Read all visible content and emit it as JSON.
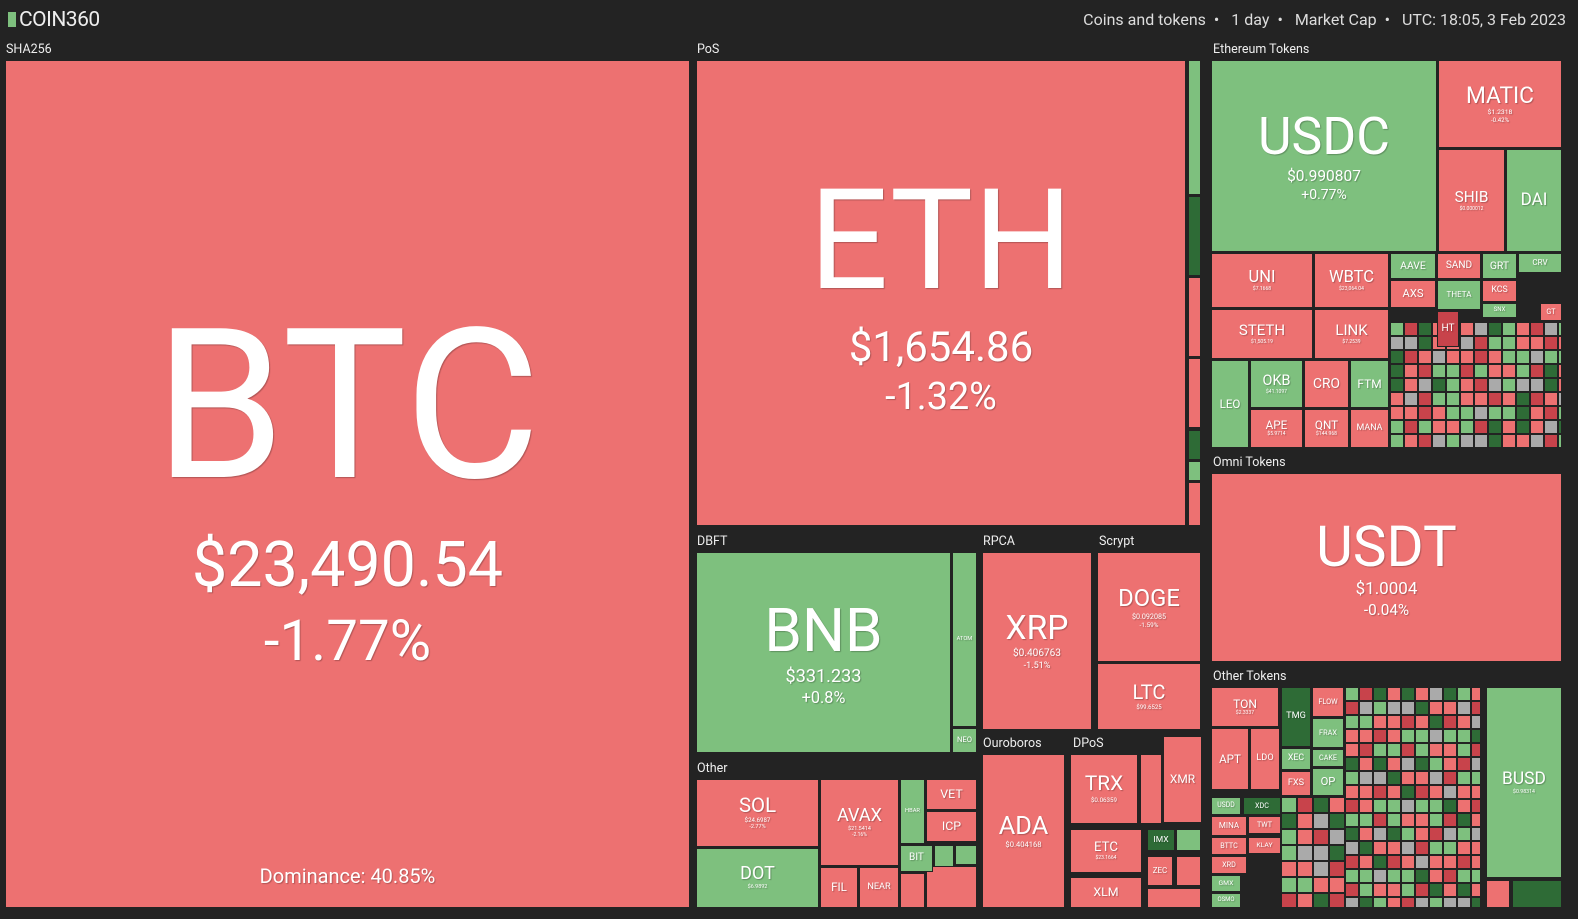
{
  "header": {
    "logo": "COIN360",
    "filters": [
      "Coins and tokens",
      "1 day",
      "Market Cap",
      "UTC: 18:05, 3 Feb 2023"
    ]
  },
  "groups": [
    {
      "label": "SHA256",
      "tiles": [
        {
          "symbol": "BTC",
          "price": "$23,490.54",
          "change": "-1.77%",
          "color": "#ed7171",
          "note": "Dominance: 40.85%"
        }
      ]
    },
    {
      "label": "PoS",
      "tiles": [
        {
          "symbol": "ETH",
          "price": "$1,654.86",
          "change": "-1.32%",
          "color": "#ed7171"
        }
      ]
    },
    {
      "label": "Ethereum Tokens",
      "tiles": [
        {
          "symbol": "USDC",
          "price": "$0.990807",
          "change": "+0.77%",
          "color": "#7ec07e"
        },
        {
          "symbol": "MATIC",
          "price": "$1.2318",
          "change": "-0.42%",
          "color": "#ed7171"
        },
        {
          "symbol": "SHIB",
          "price": "$0.000012",
          "color": "#ed7171"
        },
        {
          "symbol": "DAI",
          "color": "#7ec07e"
        },
        {
          "symbol": "UNI",
          "price": "$7.1668",
          "color": "#ed7171"
        },
        {
          "symbol": "WBTC",
          "price": "$23,064.04",
          "color": "#ed7171"
        },
        {
          "symbol": "STETH",
          "price": "$1,505.19",
          "color": "#ed7171"
        },
        {
          "symbol": "LINK",
          "price": "$7.2539",
          "color": "#ed7171"
        },
        {
          "symbol": "LEO",
          "color": "#7ec07e"
        },
        {
          "symbol": "OKB",
          "price": "$41.1097",
          "color": "#7ec07e"
        },
        {
          "symbol": "CRO",
          "color": "#ed7171"
        },
        {
          "symbol": "FTM",
          "color": "#7ec07e"
        },
        {
          "symbol": "APE",
          "price": "$5.9714",
          "color": "#ed7171"
        },
        {
          "symbol": "QNT",
          "price": "$144.968",
          "color": "#ed7171"
        },
        {
          "symbol": "MANA",
          "color": "#ed7171"
        },
        {
          "symbol": "AAVE",
          "color": "#7ec07e"
        },
        {
          "symbol": "SAND",
          "color": "#ed7171"
        },
        {
          "symbol": "GRT",
          "color": "#7ec07e"
        },
        {
          "symbol": "CRV",
          "color": "#7ec07e"
        },
        {
          "symbol": "AXS",
          "color": "#ed7171"
        },
        {
          "symbol": "THETA",
          "color": "#7ec07e"
        },
        {
          "symbol": "KCS",
          "color": "#ed7171"
        },
        {
          "symbol": "HT",
          "color": "#c8434b"
        },
        {
          "symbol": "SNX",
          "color": "#7ec07e"
        },
        {
          "symbol": "GT",
          "color": "#ed7171"
        }
      ]
    },
    {
      "label": "Omni Tokens",
      "tiles": [
        {
          "symbol": "USDT",
          "price": "$1.0004",
          "change": "-0.04%",
          "color": "#ed7171"
        }
      ]
    },
    {
      "label": "Other Tokens",
      "tiles": [
        {
          "symbol": "TON",
          "price": "$2.3337",
          "color": "#ed7171"
        },
        {
          "symbol": "TMG",
          "color": "#2e6b36"
        },
        {
          "symbol": "FLOW",
          "color": "#ed7171"
        },
        {
          "symbol": "FRAX",
          "color": "#7ec07e"
        },
        {
          "symbol": "APT",
          "color": "#ed7171"
        },
        {
          "symbol": "LDO",
          "color": "#ed7171"
        },
        {
          "symbol": "XEC",
          "color": "#7ec07e"
        },
        {
          "symbol": "CAKE",
          "color": "#7ec07e"
        },
        {
          "symbol": "FXS",
          "color": "#ed7171"
        },
        {
          "symbol": "OP",
          "color": "#7ec07e"
        },
        {
          "symbol": "USDD",
          "color": "#7ec07e"
        },
        {
          "symbol": "XDC",
          "color": "#2e6b36"
        },
        {
          "symbol": "MINA",
          "color": "#ed7171"
        },
        {
          "symbol": "TWT",
          "color": "#ed7171"
        },
        {
          "symbol": "BTTC",
          "color": "#ed7171"
        },
        {
          "symbol": "KLAY",
          "color": "#ed7171"
        },
        {
          "symbol": "XRD",
          "color": "#ed7171"
        },
        {
          "symbol": "GMX",
          "color": "#7ec07e"
        },
        {
          "symbol": "OSMO",
          "color": "#7ec07e"
        },
        {
          "symbol": "BUSD",
          "price": "$0.98314",
          "color": "#7ec07e"
        }
      ]
    },
    {
      "label": "DBFT",
      "tiles": [
        {
          "symbol": "BNB",
          "price": "$331.233",
          "change": "+0.8%",
          "color": "#7ec07e"
        },
        {
          "symbol": "ATOM",
          "color": "#7ec07e"
        },
        {
          "symbol": "NEO",
          "color": "#7ec07e"
        }
      ]
    },
    {
      "label": "RPCA",
      "tiles": [
        {
          "symbol": "XRP",
          "price": "$0.406763",
          "change": "-1.51%",
          "color": "#ed7171"
        }
      ]
    },
    {
      "label": "Scrypt",
      "tiles": [
        {
          "symbol": "DOGE",
          "price": "$0.092085",
          "change": "-1.59%",
          "color": "#ed7171"
        },
        {
          "symbol": "LTC",
          "price": "$99.6525",
          "color": "#ed7171"
        }
      ]
    },
    {
      "label": "Other",
      "tiles": [
        {
          "symbol": "SOL",
          "price": "$24.6987",
          "change": "-2.77%",
          "color": "#ed7171"
        },
        {
          "symbol": "DOT",
          "price": "$6.9892",
          "color": "#7ec07e"
        },
        {
          "symbol": "AVAX",
          "price": "$21.5414",
          "change": "-2.16%",
          "color": "#ed7171"
        },
        {
          "symbol": "VET",
          "color": "#ed7171"
        },
        {
          "symbol": "ICP",
          "color": "#ed7171"
        },
        {
          "symbol": "HBAR",
          "color": "#7ec07e"
        },
        {
          "symbol": "FIL",
          "color": "#ed7171"
        },
        {
          "symbol": "NEAR",
          "color": "#ed7171"
        },
        {
          "symbol": "BIT",
          "color": "#7ec07e"
        }
      ]
    },
    {
      "label": "Ouroboros",
      "tiles": [
        {
          "symbol": "ADA",
          "price": "$0.404168",
          "color": "#ed7171"
        }
      ]
    },
    {
      "label": "DPoS",
      "tiles": [
        {
          "symbol": "TRX",
          "price": "$0.06359",
          "color": "#ed7171"
        },
        {
          "symbol": "ETC",
          "price": "$23.1664",
          "color": "#ed7171"
        },
        {
          "symbol": "XLM",
          "color": "#ed7171"
        },
        {
          "symbol": "XMR",
          "color": "#ed7171"
        },
        {
          "symbol": "IMX",
          "color": "#2e6b36"
        },
        {
          "symbol": "ZEC",
          "color": "#ed7171"
        }
      ]
    }
  ]
}
